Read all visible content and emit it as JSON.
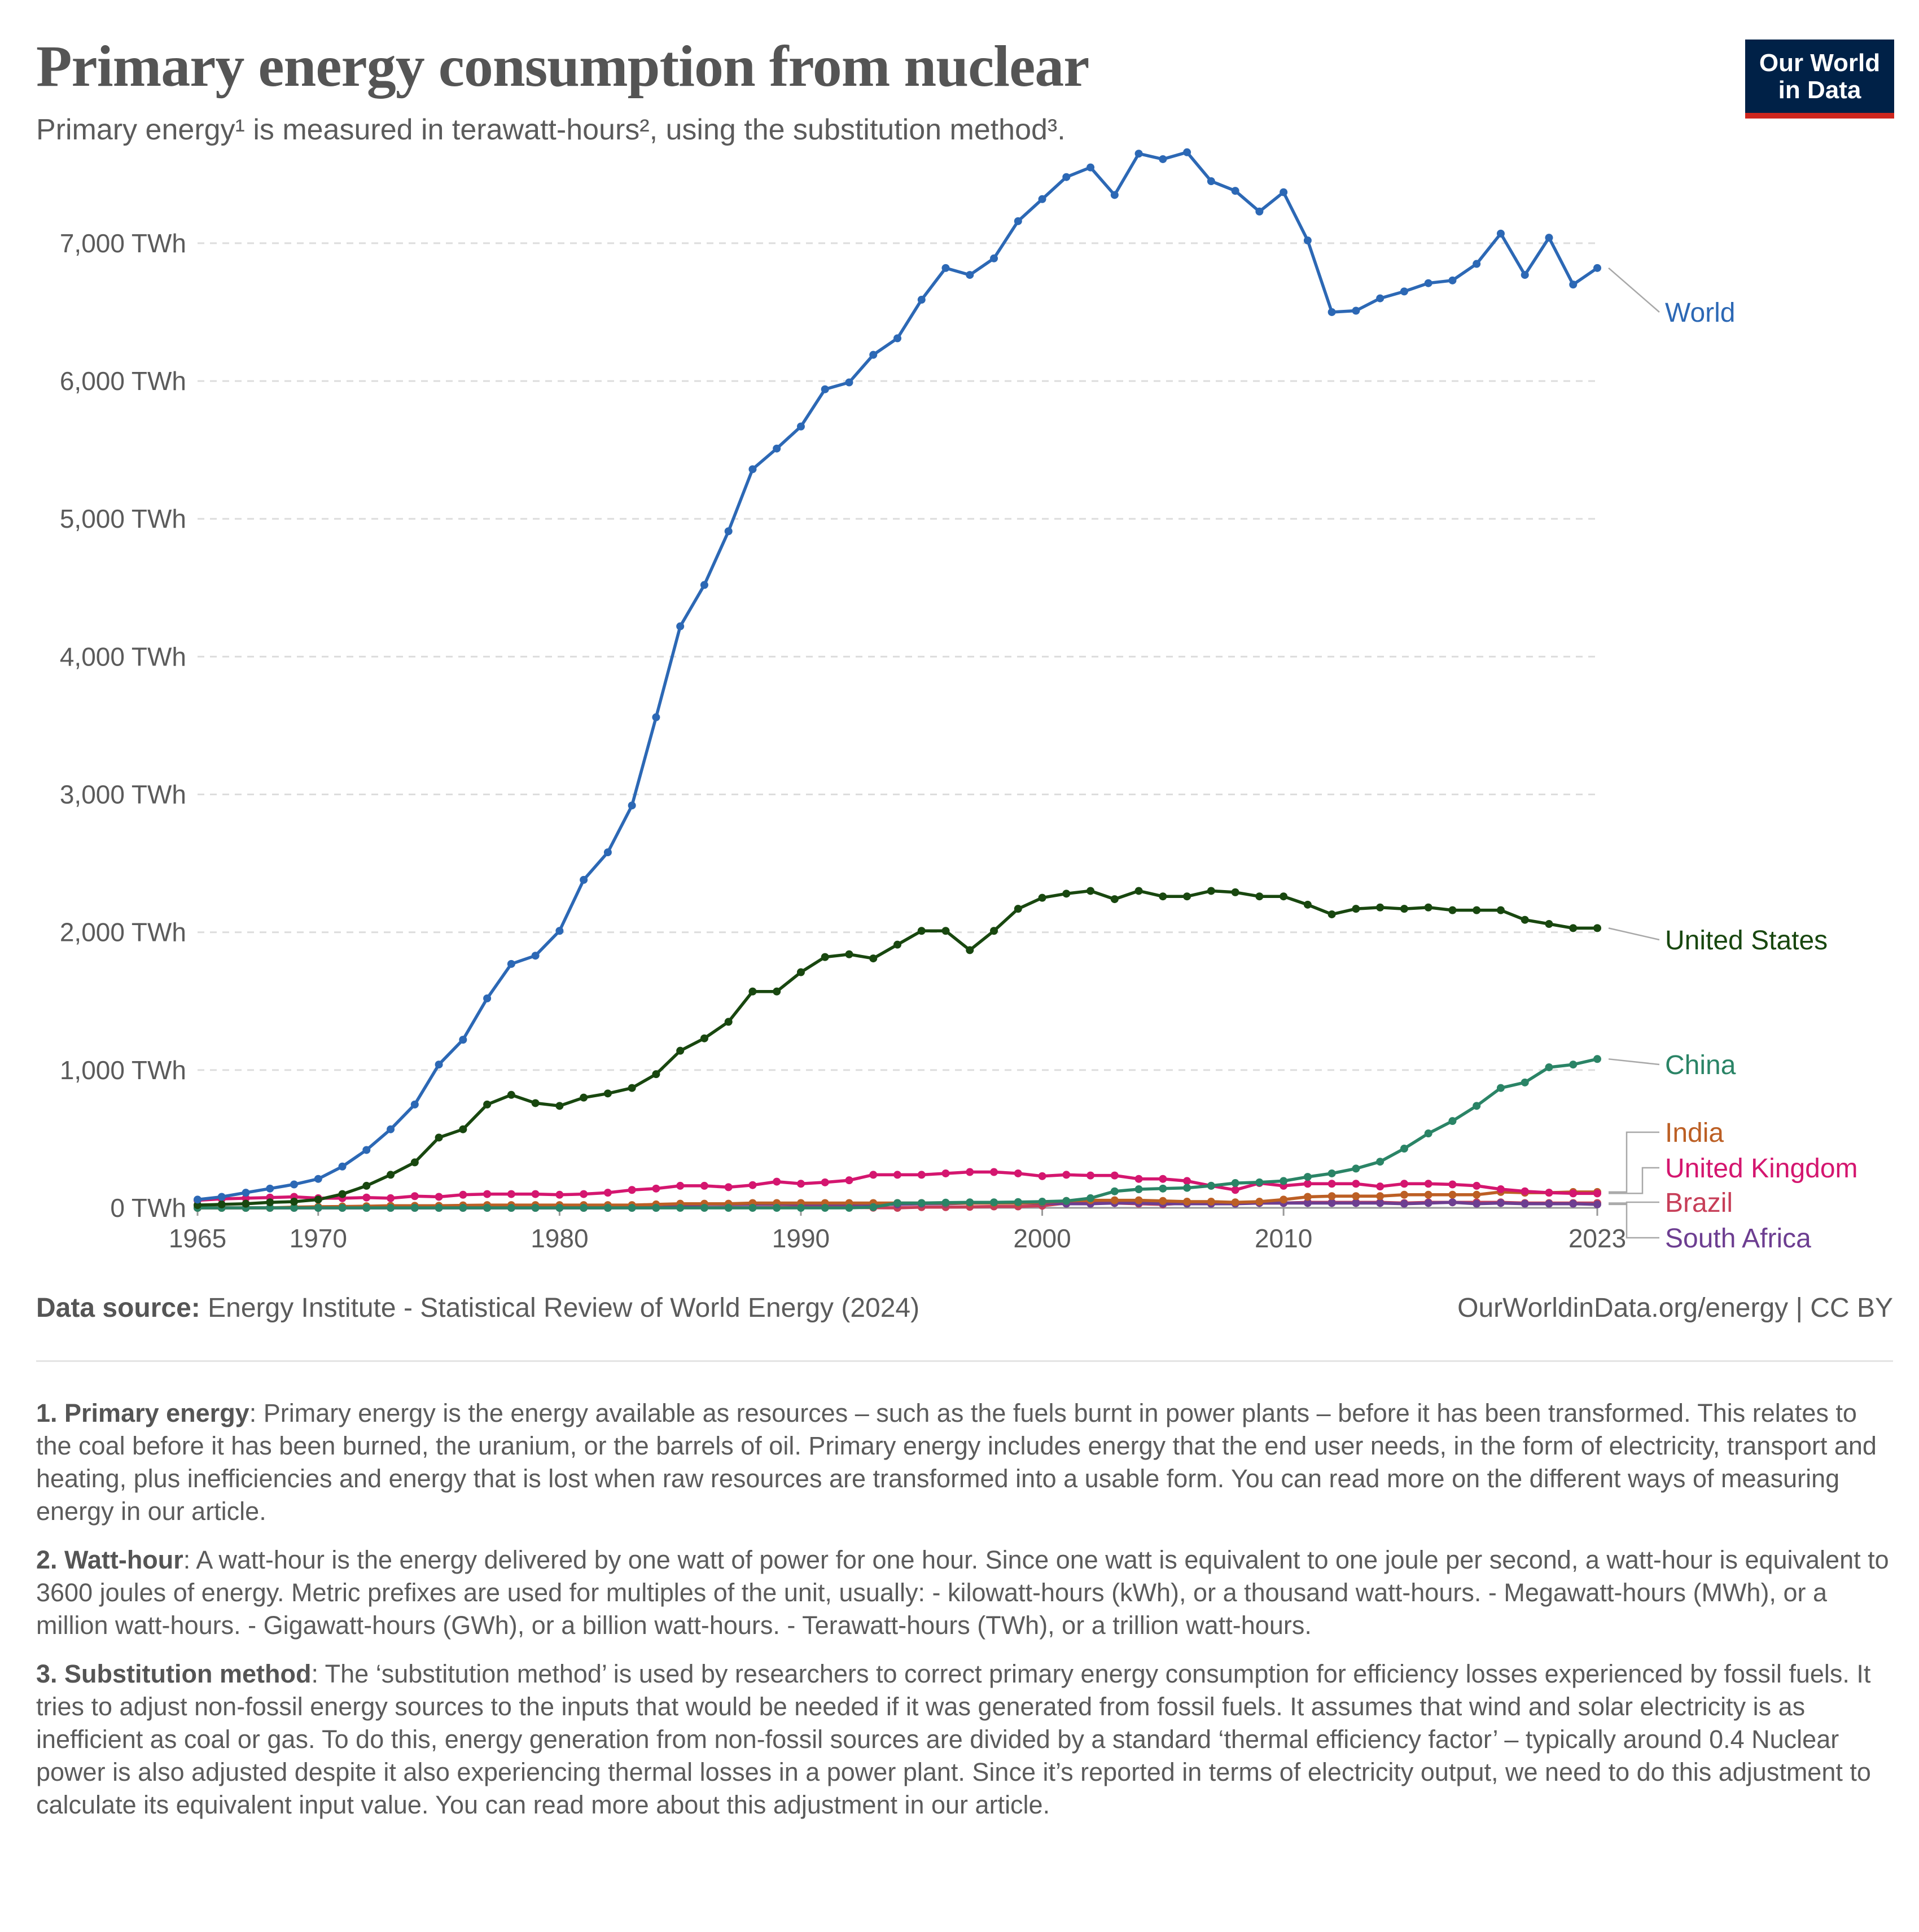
{
  "header": {
    "title": "Primary energy consumption from nuclear",
    "subtitle": "Primary energy¹ is measured in terawatt-hours², using the substitution method³.",
    "logo_line1": "Our World",
    "logo_line2": "in Data"
  },
  "footer": {
    "source_label": "Data source:",
    "source_text": "Energy Institute - Statistical Review of World Energy (2024)",
    "credit": "OurWorldinData.org/energy | CC BY"
  },
  "notes": [
    {
      "label": "1. Primary energy",
      "text": ": Primary energy is the energy available as resources – such as the fuels burnt in power plants – before it has been transformed. This relates to the coal before it has been burned, the uranium, or the barrels of oil. Primary energy includes energy that the end user needs, in the form of electricity, transport and heating, plus inefficiencies and energy that is lost when raw resources are transformed into a usable form. You can read more on the different ways of measuring energy in our article."
    },
    {
      "label": "2. Watt-hour",
      "text": ": A watt-hour is the energy delivered by one watt of power for one hour. Since one watt is equivalent to one joule per second, a watt-hour is equivalent to 3600 joules of energy. Metric prefixes are used for multiples of the unit, usually: - kilowatt-hours (kWh), or a thousand watt-hours. - Megawatt-hours (MWh), or a million watt-hours. - Gigawatt-hours (GWh), or a billion watt-hours. - Terawatt-hours (TWh), or a trillion watt-hours."
    },
    {
      "label": "3. Substitution method",
      "text": ": The ‘substitution method’ is used by researchers to correct primary energy consumption for efficiency losses experienced by fossil fuels. It tries to adjust non-fossil energy sources to the inputs that would be needed if it was generated from fossil fuels. It assumes that wind and solar electricity is as inefficient as coal or gas. To do this, energy generation from non-fossil sources are divided by a standard ‘thermal efficiency factor’ – typically around 0.4 Nuclear power is also adjusted despite it also experiencing thermal losses in a power plant. Since it’s reported in terms of electricity output, we need to do this adjustment to calculate its equivalent input value. You can read more about this adjustment in our article."
    }
  ],
  "chart_data": {
    "type": "line",
    "title": "Primary energy consumption from nuclear",
    "xlim": [
      1965,
      2023
    ],
    "ylim": [
      0,
      7700
    ],
    "x_ticks": [
      1965,
      1970,
      1980,
      1990,
      2000,
      2010,
      2023
    ],
    "x_tick_labels": [
      "1965",
      "1970",
      "1980",
      "1990",
      "2000",
      "2010",
      "2023"
    ],
    "y_ticks": [
      0,
      1000,
      2000,
      3000,
      4000,
      5000,
      6000,
      7000
    ],
    "y_tick_labels": [
      "0 TWh",
      "1,000 TWh",
      "2,000 TWh",
      "3,000 TWh",
      "4,000 TWh",
      "5,000 TWh",
      "6,000 TWh",
      "7,000 TWh"
    ],
    "grid": "horizontal dashed",
    "legend": "line-end labels on right",
    "x": [
      1965,
      1966,
      1967,
      1968,
      1969,
      1970,
      1971,
      1972,
      1973,
      1974,
      1975,
      1976,
      1977,
      1978,
      1979,
      1980,
      1981,
      1982,
      1983,
      1984,
      1985,
      1986,
      1987,
      1988,
      1989,
      1990,
      1991,
      1992,
      1993,
      1994,
      1995,
      1996,
      1997,
      1998,
      1999,
      2000,
      2001,
      2002,
      2003,
      2004,
      2005,
      2006,
      2007,
      2008,
      2009,
      2010,
      2011,
      2012,
      2013,
      2014,
      2015,
      2016,
      2017,
      2018,
      2019,
      2020,
      2021,
      2022,
      2023
    ],
    "series": [
      {
        "name": "World",
        "color": "#2c68b5",
        "values": [
          60,
          80,
          110,
          140,
          170,
          210,
          300,
          420,
          570,
          750,
          1040,
          1220,
          1520,
          1770,
          1830,
          2010,
          2380,
          2580,
          2920,
          3560,
          4220,
          4520,
          4910,
          5360,
          5510,
          5670,
          5940,
          5990,
          6190,
          6310,
          6590,
          6820,
          6770,
          6890,
          7160,
          7320,
          7480,
          7550,
          7350,
          7650,
          7610,
          7660,
          7450,
          7380,
          7230,
          7370,
          7020,
          6500,
          6510,
          6600,
          6650,
          6710,
          6730,
          6850,
          7070,
          6770,
          7040,
          6700,
          6820
        ]
      },
      {
        "name": "United States",
        "color": "#18470f",
        "values": [
          20,
          25,
          30,
          40,
          45,
          60,
          100,
          160,
          240,
          330,
          510,
          570,
          750,
          820,
          760,
          740,
          800,
          830,
          870,
          970,
          1140,
          1230,
          1350,
          1570,
          1570,
          1710,
          1820,
          1840,
          1810,
          1910,
          2010,
          2010,
          1870,
          2010,
          2170,
          2250,
          2280,
          2300,
          2240,
          2300,
          2260,
          2260,
          2300,
          2290,
          2260,
          2260,
          2200,
          2130,
          2170,
          2180,
          2170,
          2180,
          2160,
          2160,
          2160,
          2090,
          2060,
          2030,
          2030
        ]
      },
      {
        "name": "China",
        "color": "#2a8466",
        "values": [
          0,
          0,
          0,
          0,
          0,
          0,
          0,
          0,
          0,
          0,
          0,
          0,
          0,
          0,
          0,
          0,
          0,
          0,
          0,
          0,
          0,
          0,
          0,
          0,
          0,
          0,
          0,
          0,
          5,
          35,
          35,
          38,
          40,
          40,
          42,
          45,
          50,
          70,
          120,
          135,
          140,
          145,
          160,
          180,
          185,
          195,
          225,
          250,
          285,
          335,
          430,
          540,
          630,
          740,
          870,
          910,
          1020,
          1040,
          1080
        ]
      },
      {
        "name": "India",
        "color": "#bc5f24",
        "values": [
          0,
          0,
          0,
          0,
          5,
          8,
          10,
          12,
          15,
          15,
          15,
          18,
          20,
          20,
          20,
          20,
          20,
          20,
          20,
          25,
          30,
          30,
          30,
          35,
          35,
          35,
          35,
          35,
          35,
          35,
          35,
          35,
          35,
          35,
          35,
          40,
          50,
          55,
          55,
          55,
          50,
          45,
          45,
          40,
          45,
          60,
          80,
          85,
          85,
          85,
          95,
          95,
          95,
          95,
          115,
          110,
          110,
          115,
          115
        ]
      },
      {
        "name": "United Kingdom",
        "color": "#d4166f",
        "values": [
          55,
          65,
          70,
          75,
          80,
          70,
          70,
          75,
          70,
          85,
          80,
          95,
          100,
          100,
          100,
          95,
          100,
          110,
          130,
          140,
          160,
          160,
          150,
          165,
          190,
          175,
          185,
          200,
          240,
          240,
          240,
          250,
          260,
          260,
          250,
          230,
          240,
          235,
          235,
          210,
          210,
          195,
          160,
          130,
          180,
          160,
          175,
          175,
          175,
          155,
          175,
          175,
          170,
          160,
          135,
          120,
          110,
          105,
          105
        ]
      },
      {
        "name": "Brazil",
        "color": "#c73e58",
        "values": [
          0,
          0,
          0,
          0,
          0,
          0,
          0,
          0,
          0,
          0,
          0,
          0,
          0,
          0,
          0,
          0,
          0,
          0,
          3,
          3,
          8,
          1,
          2,
          1,
          4,
          5,
          3,
          4,
          1,
          0,
          5,
          5,
          7,
          10,
          10,
          15,
          35,
          35,
          35,
          30,
          25,
          35,
          30,
          35,
          35,
          35,
          40,
          40,
          40,
          40,
          35,
          40,
          40,
          40,
          40,
          35,
          35,
          35,
          35
        ]
      },
      {
        "name": "South Africa",
        "color": "#6d3e91",
        "values": [
          0,
          0,
          0,
          0,
          0,
          0,
          0,
          0,
          0,
          0,
          0,
          0,
          0,
          0,
          0,
          0,
          0,
          0,
          0,
          0,
          15,
          25,
          25,
          25,
          28,
          25,
          25,
          25,
          25,
          25,
          30,
          30,
          35,
          35,
          35,
          35,
          30,
          30,
          35,
          35,
          30,
          30,
          30,
          30,
          35,
          35,
          35,
          35,
          35,
          35,
          30,
          35,
          40,
          30,
          35,
          30,
          30,
          30,
          25
        ]
      }
    ]
  }
}
